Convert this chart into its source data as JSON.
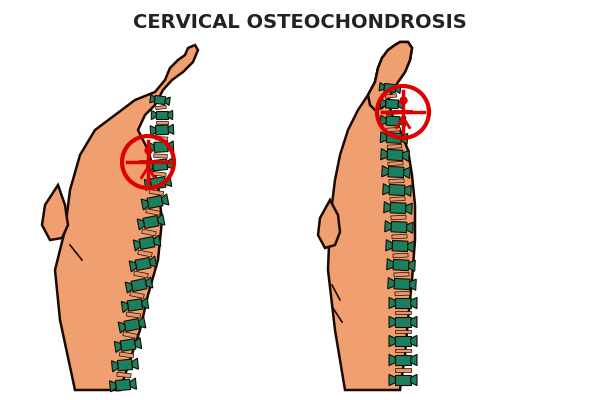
{
  "title": "CERVICAL OSTEOCHONDROSIS",
  "title_fontsize": 14,
  "title_fontweight": "bold",
  "bg_color": "#ffffff",
  "skin_color": "#F0A070",
  "outline_color": "#1a0a00",
  "spine_color": "#1a8060",
  "disc_color": "#E8956D",
  "red_color": "#DD0000",
  "fig_width": 6.0,
  "fig_height": 4.0,
  "dpi": 100
}
